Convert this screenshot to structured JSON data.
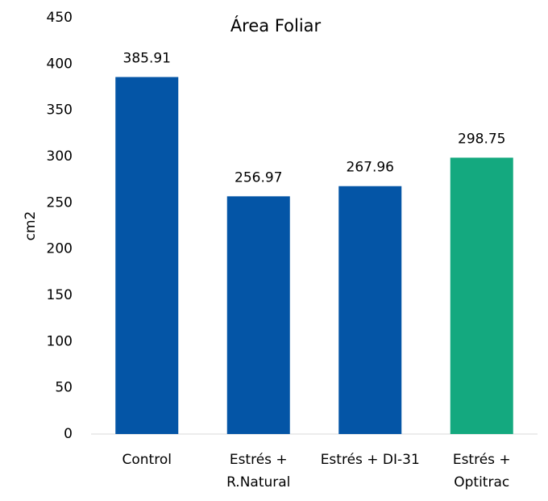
{
  "chart_data": {
    "type": "bar",
    "title": "Área Foliar",
    "y_label": "cm2",
    "categories": [
      [
        "Control"
      ],
      [
        "Estrés +",
        "R.Natural"
      ],
      [
        "Estrés + DI-31"
      ],
      [
        "Estrés +",
        "Optitrac"
      ]
    ],
    "values": [
      385.91,
      256.97,
      267.96,
      298.75
    ],
    "colors": [
      "#0455a6",
      "#0455a6",
      "#0455a6",
      "#14a97f"
    ],
    "ylim": [
      0,
      450
    ],
    "yticks": [
      0,
      50,
      100,
      150,
      200,
      250,
      300,
      350,
      400,
      450
    ],
    "grid": false
  }
}
